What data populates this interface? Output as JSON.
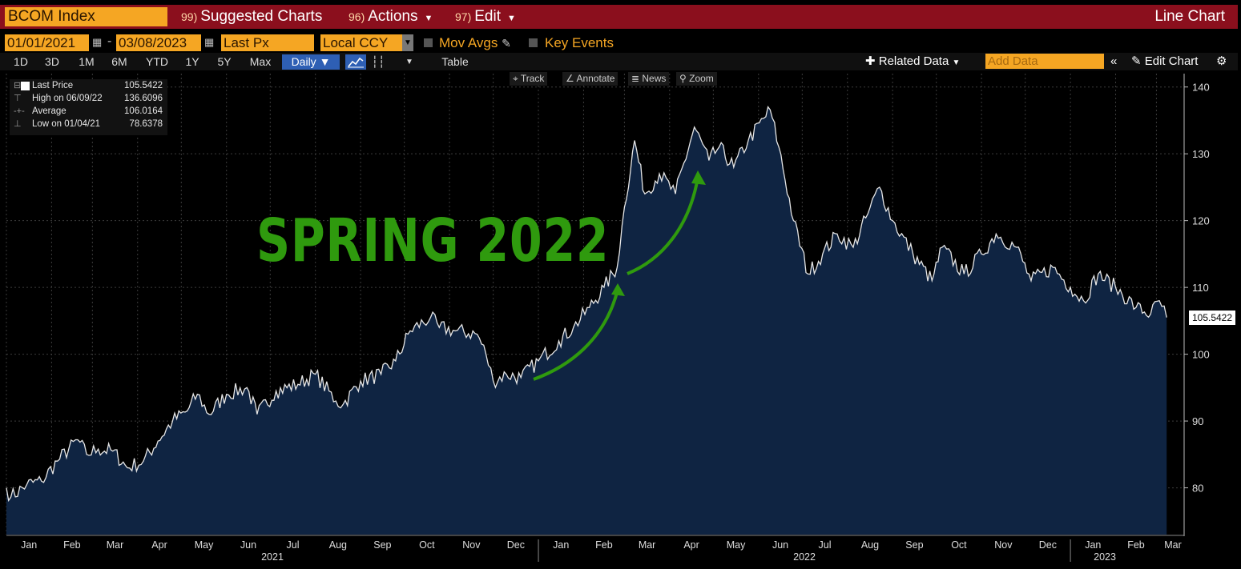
{
  "header": {
    "ticker": "BCOM Index",
    "menu": [
      {
        "num": "99)",
        "label": "Suggested Charts"
      },
      {
        "num": "96)",
        "label": "Actions"
      },
      {
        "num": "97)",
        "label": "Edit"
      }
    ],
    "chart_type": "Line Chart"
  },
  "controls": {
    "start_date": "01/01/2021",
    "end_date": "03/08/2023",
    "field": "Last Px",
    "currency": "Local CCY",
    "mov_avgs": "Mov Avgs",
    "key_events": "Key Events"
  },
  "toolbar": {
    "ranges": [
      "1D",
      "3D",
      "1M",
      "6M",
      "YTD",
      "1Y",
      "5Y",
      "Max"
    ],
    "frequency": "Daily",
    "table": "Table",
    "related_data": "Related Data",
    "add_data_placeholder": "Add Data",
    "edit_chart": "Edit Chart"
  },
  "chart_tools": [
    "Track",
    "Annotate",
    "News",
    "Zoom"
  ],
  "legend": {
    "last_label": "Last Price",
    "last_value": "105.5422",
    "high_label": "High on 06/09/22",
    "high_value": "136.6096",
    "avg_label": "Average",
    "avg_value": "106.0164",
    "low_label": "Low on 01/04/21",
    "low_value": "78.6378"
  },
  "annotation": "SPRING 2022",
  "chart_data": {
    "type": "area",
    "title": "",
    "xlabel": "",
    "ylabel": "",
    "ylim": [
      73,
      142
    ],
    "yticks": [
      80,
      90,
      100,
      110,
      120,
      130,
      140
    ],
    "x_months": [
      "Jan",
      "Feb",
      "Mar",
      "Apr",
      "May",
      "Jun",
      "Jul",
      "Aug",
      "Sep",
      "Oct",
      "Nov",
      "Dec",
      "Jan",
      "Feb",
      "Mar",
      "Apr",
      "May",
      "Jun",
      "Jul",
      "Aug",
      "Sep",
      "Oct",
      "Nov",
      "Dec",
      "Jan",
      "Feb",
      "Mar"
    ],
    "x_years": [
      "2021",
      "2022",
      "2023"
    ],
    "grid": true,
    "series": [
      {
        "values": [
          {
            "x": "2021-01-01",
            "y": 80.0
          },
          {
            "x": "2021-01-04",
            "y": 78.6
          },
          {
            "x": "2021-01-15",
            "y": 80.5
          },
          {
            "x": "2021-01-25",
            "y": 81.0
          },
          {
            "x": "2021-02-05",
            "y": 84.0
          },
          {
            "x": "2021-02-19",
            "y": 87.2
          },
          {
            "x": "2021-02-25",
            "y": 85.0
          },
          {
            "x": "2021-03-05",
            "y": 85.8
          },
          {
            "x": "2021-03-15",
            "y": 85.5
          },
          {
            "x": "2021-03-25",
            "y": 83.0
          },
          {
            "x": "2021-04-05",
            "y": 84.0
          },
          {
            "x": "2021-04-15",
            "y": 87.0
          },
          {
            "x": "2021-04-25",
            "y": 90.0
          },
          {
            "x": "2021-05-05",
            "y": 91.5
          },
          {
            "x": "2021-05-12",
            "y": 94.0
          },
          {
            "x": "2021-05-20",
            "y": 91.0
          },
          {
            "x": "2021-06-01",
            "y": 94.0
          },
          {
            "x": "2021-06-15",
            "y": 95.0
          },
          {
            "x": "2021-06-22",
            "y": 91.0
          },
          {
            "x": "2021-07-05",
            "y": 94.5
          },
          {
            "x": "2021-07-20",
            "y": 95.5
          },
          {
            "x": "2021-08-01",
            "y": 97.0
          },
          {
            "x": "2021-08-15",
            "y": 93.0
          },
          {
            "x": "2021-08-20",
            "y": 92.5
          },
          {
            "x": "2021-09-01",
            "y": 96.0
          },
          {
            "x": "2021-09-15",
            "y": 97.0
          },
          {
            "x": "2021-09-25",
            "y": 99.0
          },
          {
            "x": "2021-10-05",
            "y": 103.5
          },
          {
            "x": "2021-10-19",
            "y": 105.5
          },
          {
            "x": "2021-10-25",
            "y": 104.0
          },
          {
            "x": "2021-11-05",
            "y": 103.5
          },
          {
            "x": "2021-11-20",
            "y": 103.0
          },
          {
            "x": "2021-11-26",
            "y": 100.0
          },
          {
            "x": "2021-12-01",
            "y": 96.0
          },
          {
            "x": "2021-12-10",
            "y": 97.0
          },
          {
            "x": "2021-12-20",
            "y": 96.5
          },
          {
            "x": "2022-01-01",
            "y": 99.0
          },
          {
            "x": "2022-01-15",
            "y": 102.0
          },
          {
            "x": "2022-01-25",
            "y": 104.0
          },
          {
            "x": "2022-02-05",
            "y": 107.0
          },
          {
            "x": "2022-02-15",
            "y": 110.0
          },
          {
            "x": "2022-02-24",
            "y": 113.0
          },
          {
            "x": "2022-03-01",
            "y": 122.0
          },
          {
            "x": "2022-03-08",
            "y": 132.0
          },
          {
            "x": "2022-03-15",
            "y": 124.0
          },
          {
            "x": "2022-03-25",
            "y": 127.0
          },
          {
            "x": "2022-04-05",
            "y": 124.0
          },
          {
            "x": "2022-04-18",
            "y": 134.0
          },
          {
            "x": "2022-04-28",
            "y": 129.0
          },
          {
            "x": "2022-05-05",
            "y": 131.0
          },
          {
            "x": "2022-05-15",
            "y": 128.0
          },
          {
            "x": "2022-05-25",
            "y": 132.0
          },
          {
            "x": "2022-06-09",
            "y": 136.6
          },
          {
            "x": "2022-06-15",
            "y": 131.0
          },
          {
            "x": "2022-06-25",
            "y": 120.0
          },
          {
            "x": "2022-07-05",
            "y": 112.0
          },
          {
            "x": "2022-07-15",
            "y": 115.0
          },
          {
            "x": "2022-07-25",
            "y": 118.0
          },
          {
            "x": "2022-08-05",
            "y": 116.0
          },
          {
            "x": "2022-08-15",
            "y": 121.0
          },
          {
            "x": "2022-08-23",
            "y": 125.0
          },
          {
            "x": "2022-09-01",
            "y": 120.0
          },
          {
            "x": "2022-09-15",
            "y": 115.0
          },
          {
            "x": "2022-09-28",
            "y": 111.0
          },
          {
            "x": "2022-10-05",
            "y": 116.0
          },
          {
            "x": "2022-10-20",
            "y": 112.0
          },
          {
            "x": "2022-11-01",
            "y": 115.0
          },
          {
            "x": "2022-11-11",
            "y": 118.0
          },
          {
            "x": "2022-11-25",
            "y": 116.0
          },
          {
            "x": "2022-12-05",
            "y": 111.0
          },
          {
            "x": "2022-12-20",
            "y": 113.0
          },
          {
            "x": "2023-01-01",
            "y": 110.0
          },
          {
            "x": "2023-01-10",
            "y": 108.0
          },
          {
            "x": "2023-01-20",
            "y": 112.0
          },
          {
            "x": "2023-02-01",
            "y": 110.0
          },
          {
            "x": "2023-02-15",
            "y": 107.0
          },
          {
            "x": "2023-02-25",
            "y": 106.0
          },
          {
            "x": "2023-03-03",
            "y": 108.0
          },
          {
            "x": "2023-03-08",
            "y": 105.5
          }
        ]
      }
    ],
    "last_value_label": "105.5422"
  }
}
